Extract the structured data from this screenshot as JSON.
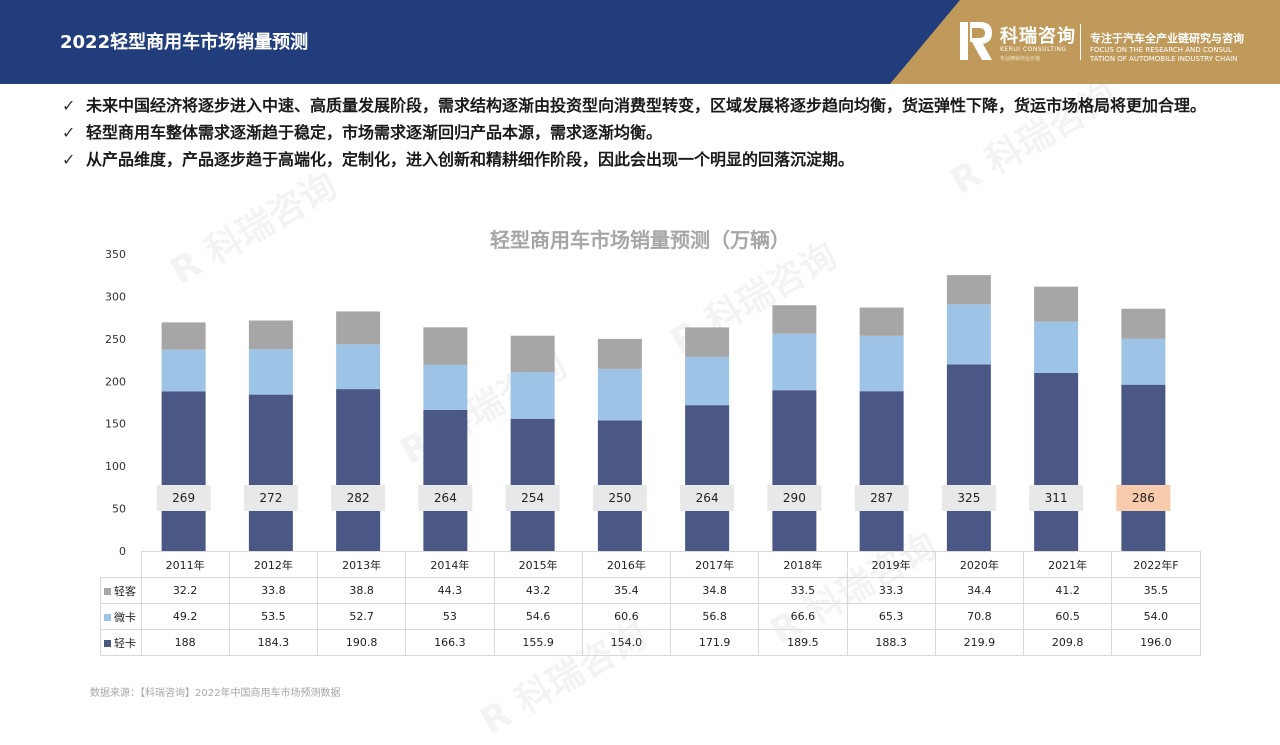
{
  "header": {
    "title": "2022轻型商用车市场销量预测",
    "logo_name": "科瑞咨询",
    "logo_sub_en": "KERUI CONSULTING",
    "logo_sub_cn": "专业铸就商业价值",
    "tagline_cn": "专注于汽车全产业链研究与咨询",
    "tagline_en_1": "FOCUS ON THE RESEARCH AND CONSUL",
    "tagline_en_2": "TATION OF AUTOMOBILE INDUSTRY CHAIN",
    "colors": {
      "bar": "#213d7c",
      "accent": "#bf9a5b"
    }
  },
  "bullets": [
    "未来中国经济将逐步进入中速、高质量发展阶段，需求结构逐渐由投资型向消费型转变，区域发展将逐步趋向均衡，货运弹性下降，货运市场格局将更加合理。",
    "轻型商用车整体需求逐渐趋于稳定，市场需求逐渐回归产品本源，需求逐渐均衡。",
    "从产品维度，产品逐步趋于高端化，定制化，进入创新和精耕细作阶段，因此会出现一个明显的回落沉淀期。"
  ],
  "check_glyph": "✓",
  "chart_data": {
    "type": "bar",
    "stacked": true,
    "title": "轻型商用车市场销量预测（万辆）",
    "categories": [
      "2011年",
      "2012年",
      "2013年",
      "2014年",
      "2015年",
      "2016年",
      "2017年",
      "2018年",
      "2019年",
      "2020年",
      "2021年",
      "2022年F"
    ],
    "series": [
      {
        "name": "轻卡",
        "color": "#4b5785",
        "values": [
          188,
          184.3,
          190.8,
          166.3,
          155.9,
          154.0,
          171.9,
          189.5,
          188.3,
          219.9,
          209.8,
          196.0
        ],
        "labels": [
          "188",
          "184.3",
          "190.8",
          "166.3",
          "155.9",
          "154.0",
          "171.9",
          "189.5",
          "188.3",
          "219.9",
          "209.8",
          "196.0"
        ]
      },
      {
        "name": "微卡",
        "color": "#9dc3e6",
        "values": [
          49.2,
          53.5,
          52.7,
          53,
          54.6,
          60.6,
          56.8,
          66.6,
          65.3,
          70.8,
          60.5,
          54.0
        ],
        "labels": [
          "49.2",
          "53.5",
          "52.7",
          "53",
          "54.6",
          "60.6",
          "56.8",
          "66.6",
          "65.3",
          "70.8",
          "60.5",
          "54.0"
        ]
      },
      {
        "name": "轻客",
        "color": "#a6a6a6",
        "values": [
          32.2,
          33.8,
          38.8,
          44.3,
          43.2,
          35.4,
          34.8,
          33.5,
          33.3,
          34.4,
          41.2,
          35.5
        ],
        "labels": [
          "32.2",
          "33.8",
          "38.8",
          "44.3",
          "43.2",
          "35.4",
          "34.8",
          "33.5",
          "33.3",
          "34.4",
          "41.2",
          "35.5"
        ]
      }
    ],
    "totals": [
      "269",
      "272",
      "282",
      "264",
      "254",
      "250",
      "264",
      "290",
      "287",
      "325",
      "311",
      "286"
    ],
    "highlight_total_index": 11,
    "highlight_color": "#f8cbad",
    "total_box_color": "#e8e8e8",
    "ylim": [
      0,
      350
    ],
    "yticks": [
      "0",
      "50",
      "100",
      "150",
      "200",
      "250",
      "300",
      "350"
    ],
    "grid": false,
    "legend": "data-table"
  },
  "table_row_order": [
    2,
    1,
    0
  ],
  "source": "数据来源：【科瑞咨询】2022年中国商用车市场预测数据",
  "watermark_text": "科瑞咨询"
}
